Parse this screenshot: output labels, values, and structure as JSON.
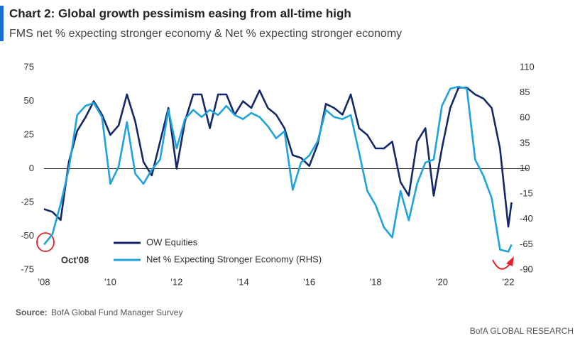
{
  "chart_data": {
    "type": "line",
    "title": "Chart 2: Global growth pessimism easing from all-time high",
    "subtitle": "FMS net % expecting stronger economy & Net % expecting stronger economy",
    "source_label": "Source:",
    "source": "BofA Global Fund Manager Survey",
    "footer": "BofA GLOBAL RESEARCH",
    "annotation": "Oct'08",
    "x": [
      2008,
      2008.25,
      2008.5,
      2008.75,
      2009,
      2009.25,
      2009.5,
      2009.75,
      2010,
      2010.25,
      2010.5,
      2010.75,
      2011,
      2011.25,
      2011.5,
      2011.75,
      2012,
      2012.25,
      2012.5,
      2012.75,
      2013,
      2013.25,
      2013.5,
      2013.75,
      2014,
      2014.25,
      2014.5,
      2014.75,
      2015,
      2015.25,
      2015.5,
      2015.75,
      2016,
      2016.25,
      2016.5,
      2016.75,
      2017,
      2017.25,
      2017.5,
      2017.75,
      2018,
      2018.25,
      2018.5,
      2018.75,
      2019,
      2019.25,
      2019.5,
      2019.75,
      2020,
      2020.25,
      2020.5,
      2020.75,
      2021,
      2021.25,
      2021.5,
      2021.75,
      2022,
      2022.1
    ],
    "series": [
      {
        "name": "OW Equities",
        "color": "#13286b",
        "values": [
          -30,
          -32,
          -38,
          5,
          28,
          38,
          50,
          40,
          25,
          32,
          55,
          35,
          5,
          -5,
          20,
          45,
          0,
          35,
          55,
          55,
          30,
          55,
          55,
          40,
          50,
          45,
          58,
          45,
          40,
          30,
          10,
          8,
          2,
          18,
          48,
          45,
          40,
          55,
          30,
          25,
          15,
          15,
          20,
          -10,
          -20,
          20,
          30,
          -20,
          15,
          45,
          60,
          60,
          55,
          52,
          45,
          15,
          -43,
          -25
        ]
      },
      {
        "name": "Net % Expecting Stronger Economy (RHS)",
        "color": "#1fa3dc",
        "axis": "y2",
        "values": [
          -65,
          -55,
          -25,
          10,
          63,
          72,
          75,
          61,
          -5,
          12,
          56,
          5,
          -5,
          9,
          19,
          68,
          30,
          59,
          68,
          61,
          68,
          63,
          72,
          63,
          59,
          65,
          61,
          52,
          40,
          47,
          -11,
          16,
          23,
          37,
          68,
          61,
          59,
          63,
          26,
          -12,
          -26,
          -48,
          -58,
          -12,
          -41,
          -5,
          16,
          19,
          72,
          89,
          91,
          89,
          19,
          3,
          -19,
          -70,
          -72,
          -65
        ]
      }
    ],
    "xlim": [
      2008,
      2022.6
    ],
    "xticks": [
      {
        "value": 2008,
        "label": "'08"
      },
      {
        "value": 2010,
        "label": "'10"
      },
      {
        "value": 2012,
        "label": "'12"
      },
      {
        "value": 2014,
        "label": "'14"
      },
      {
        "value": 2016,
        "label": "'16"
      },
      {
        "value": 2018,
        "label": "'18"
      },
      {
        "value": 2020,
        "label": "'20"
      },
      {
        "value": 2022,
        "label": "'22"
      }
    ],
    "ylim": [
      -75,
      75
    ],
    "yticks": [
      -75,
      -50,
      -25,
      0,
      25,
      50,
      75
    ],
    "y2lim": [
      -90,
      110
    ],
    "y2ticks": [
      -90,
      -65,
      -40,
      -15,
      10,
      35,
      60,
      85,
      110
    ],
    "zero_line": true,
    "legend": "lower left"
  }
}
